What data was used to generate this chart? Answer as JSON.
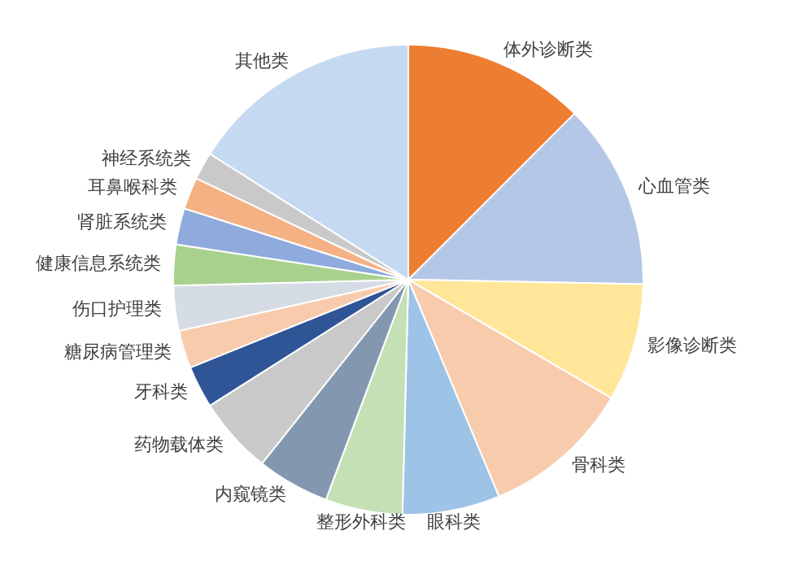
{
  "chart_data": {
    "type": "pie",
    "categories": [
      "体外诊断类",
      "心血管类",
      "影像诊断类",
      "骨科类",
      "眼科类",
      "整形外科类",
      "内窥镜类",
      "药物载体类",
      "牙科类",
      "糖尿病管理类",
      "伤口护理类",
      "健康信息系统类",
      "肾脏系统类",
      "耳鼻喉科类",
      "神经系统类",
      "其他类"
    ],
    "values": [
      12.5,
      12.8,
      8.1,
      10.3,
      6.7,
      5.3,
      5.0,
      5.3,
      2.9,
      2.6,
      3.1,
      2.8,
      2.5,
      2.2,
      1.9,
      16.0
    ],
    "colors": [
      "#ed7d31",
      "#b4c7e7",
      "#ffe699",
      "#f8cbad",
      "#9dc3e6",
      "#c5e0b4",
      "#8497b0",
      "#c9c9c9",
      "#2f5597",
      "#f8cbad",
      "#d6dce5",
      "#a9d18e",
      "#8faadc",
      "#f4b183",
      "#c9c9c9",
      "#c5d9f1"
    ]
  }
}
